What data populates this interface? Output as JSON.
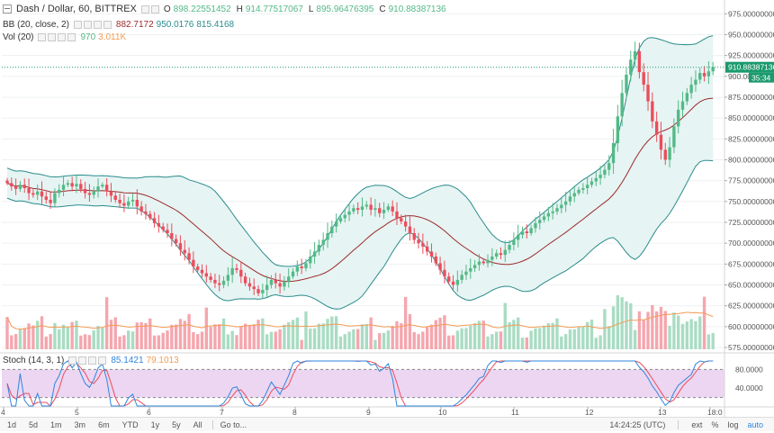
{
  "header": {
    "collapse_icon": "minus-box-icon",
    "symbol": "Dash / Dollar, 60, BITTREX",
    "o_label": "O",
    "o": "898.22551452",
    "h_label": "H",
    "h": "914.77517067",
    "l_label": "L",
    "l": "895.96476395",
    "c_label": "C",
    "c": "910.88387136"
  },
  "indicators": {
    "bb": {
      "label": "BB (20, close, 2)",
      "v1": "882.7172",
      "v2": "950.0176",
      "v3": "815.4168"
    },
    "vol": {
      "label": "Vol (20)",
      "v1": "970",
      "v2": "3.011K"
    },
    "stoch": {
      "label": "Stoch (14, 3, 1)",
      "v1": "85.1421",
      "v2": "79.1013"
    }
  },
  "colors": {
    "up": "#53b987",
    "down": "#eb4d5c",
    "bb_band": "#2a8c8c",
    "bb_basis": "#9c2a2a",
    "bb_fill": "#e3f3f2",
    "vol_up": "#a9dcc3",
    "vol_down": "#f5a6ae",
    "vol_ma": "#f49b52",
    "stoch_k": "#2e86de",
    "stoch_d": "#eb4d5c",
    "stoch_bg": "#e6c8ee",
    "price_line": "#1b9a6d"
  },
  "price_axis": {
    "labels": [
      "975.00000000",
      "950.00000000",
      "925.00000000",
      "900.00000000",
      "875.00000000",
      "850.00000000",
      "825.00000000",
      "800.00000000",
      "775.00000000",
      "750.00000000",
      "725.00000000",
      "700.00000000",
      "675.00000000",
      "650.00000000",
      "625.00000000",
      "600.00000000",
      "575.00000000"
    ],
    "last_price": "910.88387136",
    "countdown": "35:34"
  },
  "stoch_axis": {
    "labels": [
      "80.0000",
      "40.0000"
    ]
  },
  "time_axis": {
    "labels": [
      "4",
      "5",
      "6",
      "7",
      "8",
      "9",
      "10",
      "11",
      "12",
      "13",
      "18:0"
    ]
  },
  "bottom_bar": {
    "ranges": [
      "1d",
      "5d",
      "1m",
      "3m",
      "6m",
      "YTD",
      "1y",
      "5y",
      "All"
    ],
    "goto": "Go to...",
    "time": "14:24:25 (UTC)",
    "ext": "ext",
    "pct": "%",
    "log": "log",
    "auto": "auto"
  },
  "chart_data": {
    "type": "candlestick",
    "description_source": "values estimated from price axis",
    "ylim": [
      575,
      990
    ],
    "x_day_labels": [
      "4",
      "5",
      "6",
      "7",
      "8",
      "9",
      "10",
      "11",
      "12",
      "13"
    ],
    "close_approx": [
      772,
      768,
      765,
      770,
      766,
      760,
      758,
      762,
      756,
      752,
      748,
      760,
      764,
      770,
      772,
      768,
      771,
      765,
      760,
      758,
      762,
      768,
      770,
      762,
      757,
      752,
      748,
      745,
      750,
      752,
      744,
      738,
      735,
      730,
      724,
      720,
      716,
      712,
      705,
      700,
      692,
      688,
      680,
      672,
      668,
      664,
      660,
      656,
      652,
      650,
      655,
      662,
      670,
      668,
      660,
      652,
      648,
      645,
      640,
      644,
      650,
      656,
      652,
      648,
      654,
      660,
      666,
      672,
      670,
      676,
      684,
      690,
      698,
      704,
      712,
      720,
      726,
      730,
      734,
      738,
      742,
      740,
      744,
      746,
      740,
      742,
      736,
      740,
      744,
      738,
      730,
      726,
      720,
      712,
      704,
      700,
      696,
      690,
      684,
      676,
      668,
      660,
      654,
      650,
      656,
      662,
      666,
      670,
      674,
      678,
      676,
      680,
      684,
      688,
      686,
      692,
      698,
      704,
      710,
      714,
      712,
      718,
      724,
      728,
      732,
      736,
      738,
      742,
      746,
      750,
      756,
      760,
      764,
      766,
      770,
      774,
      778,
      782,
      788,
      796,
      820,
      852,
      880,
      902,
      920,
      930,
      905,
      890,
      870,
      846,
      830,
      812,
      800,
      815,
      840,
      860,
      870,
      880,
      890,
      896,
      904,
      900,
      906,
      911
    ],
    "bollinger": {
      "basis": "20-period",
      "upper_last": 950.0176,
      "middle_last": 882.7172,
      "lower_last": 815.4168
    },
    "volume_ma_last": "3.011K",
    "stoch_k_last": 85.1421,
    "stoch_d_last": 79.1013
  }
}
